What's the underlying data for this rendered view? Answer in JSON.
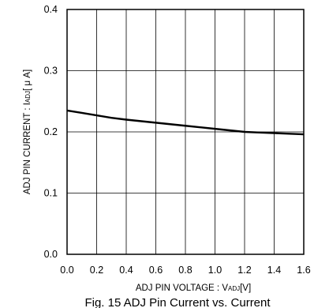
{
  "chart_data": {
    "type": "line",
    "title": "",
    "caption": "Fig. 15   ADJ Pin Current vs. Current",
    "xlabel": {
      "main": "ADJ PIN VOLTAGE : V",
      "sub": "ADJ",
      "unit": "[V]"
    },
    "ylabel": {
      "main": "ADJ PIN CURRENT : I",
      "sub": "ADJ",
      "unit": "[ μ A]"
    },
    "xlim": [
      0.0,
      1.6
    ],
    "ylim": [
      0.0,
      0.4
    ],
    "x_ticks": [
      "0.0",
      "0.2",
      "0.4",
      "0.6",
      "0.8",
      "1.0",
      "1.2",
      "1.4",
      "1.6"
    ],
    "y_ticks": [
      "0.0",
      "0.1",
      "0.2",
      "0.3",
      "0.4"
    ],
    "grid": true,
    "series": [
      {
        "x": [
          0.0,
          0.1,
          0.2,
          0.3,
          0.4,
          0.6,
          0.8,
          1.0,
          1.2,
          1.3,
          1.4,
          1.5,
          1.6
        ],
        "y": [
          0.235,
          0.231,
          0.227,
          0.223,
          0.22,
          0.215,
          0.21,
          0.205,
          0.2,
          0.199,
          0.198,
          0.197,
          0.196
        ],
        "color": "#000000"
      }
    ]
  }
}
